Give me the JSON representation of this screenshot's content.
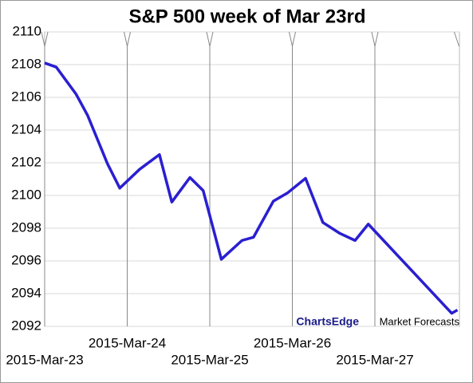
{
  "chart_data": {
    "type": "line",
    "title": "S&P 500 week of Mar 23rd",
    "x": [
      0,
      0.14,
      0.38,
      0.52,
      0.76,
      0.91,
      1.15,
      1.39,
      1.54,
      1.76,
      1.92,
      2.14,
      2.39,
      2.53,
      2.77,
      2.94,
      3.16,
      3.37,
      3.57,
      3.76,
      3.92,
      4.93,
      5.0
    ],
    "series": [
      {
        "name": "S&P 500",
        "color": "#2a1fd0",
        "values": [
          2108.1,
          2107.85,
          2106.2,
          2104.9,
          2101.95,
          2100.45,
          2101.6,
          2102.5,
          2099.6,
          2101.1,
          2100.3,
          2096.1,
          2097.25,
          2097.45,
          2099.65,
          2100.15,
          2101.05,
          2098.35,
          2097.7,
          2097.25,
          2098.25,
          2092.8,
          2093.0
        ]
      }
    ],
    "xlim": [
      0,
      5
    ],
    "xticks": [
      {
        "value": 0,
        "label": "2015-Mar-23"
      },
      {
        "value": 1,
        "label": "2015-Mar-24"
      },
      {
        "value": 2,
        "label": "2015-Mar-25"
      },
      {
        "value": 3,
        "label": "2015-Mar-26"
      },
      {
        "value": 4,
        "label": "2015-Mar-27"
      }
    ],
    "ylim": [
      2092,
      2110
    ],
    "yticks": [
      2092,
      2094,
      2096,
      2098,
      2100,
      2102,
      2104,
      2106,
      2108,
      2110
    ],
    "grid": true,
    "watermark": {
      "brand": "ChartsEdge",
      "text": "Market Forecasts"
    }
  }
}
